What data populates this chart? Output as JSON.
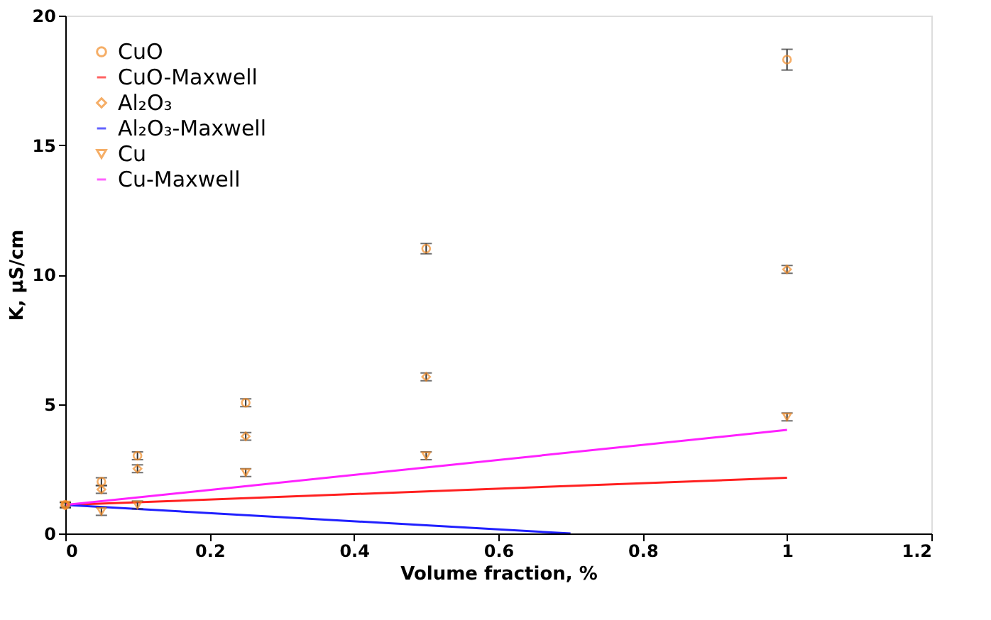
{
  "chart_data": {
    "type": "scatter",
    "xlabel": "Volume fraction, %",
    "ylabel": "K, μS/cm",
    "xlim": [
      0,
      1.2
    ],
    "xticks": [
      0,
      0.2,
      0.4,
      0.6,
      0.8,
      1,
      1.2
    ],
    "ylim": [
      0,
      20
    ],
    "yticks": [
      0,
      5,
      10,
      15,
      20
    ],
    "grid": false,
    "legend": "top left",
    "series": [
      {
        "name": "CuO",
        "marker": "circle",
        "color": "#f28c28",
        "x": [
          0,
          0.05,
          0.1,
          0.25,
          0.5,
          1
        ],
        "values": [
          1.1,
          2.0,
          3.0,
          5.05,
          11.0,
          18.3
        ],
        "errors": [
          0.1,
          0.15,
          0.15,
          0.15,
          0.2,
          0.4
        ]
      },
      {
        "name": "CuO-Maxwell",
        "type": "line",
        "color": "#ff2020",
        "x": [
          0,
          1
        ],
        "values": [
          1.1,
          2.15
        ]
      },
      {
        "name": "Al₂O₃",
        "marker": "diamond",
        "color": "#f28c28",
        "x": [
          0,
          0.05,
          0.1,
          0.25,
          0.5,
          1
        ],
        "values": [
          1.1,
          1.7,
          2.5,
          3.75,
          6.05,
          10.2
        ],
        "errors": [
          0.1,
          0.15,
          0.15,
          0.15,
          0.15,
          0.15
        ]
      },
      {
        "name": "Al₂O₃-Maxwell",
        "type": "line",
        "color": "#2020ff",
        "x": [
          0,
          0.7
        ],
        "values": [
          1.1,
          0
        ]
      },
      {
        "name": "Cu",
        "marker": "triangle",
        "color": "#f28c28",
        "x": [
          0,
          0.05,
          0.1,
          0.25,
          0.5,
          1
        ],
        "values": [
          1.1,
          0.85,
          1.1,
          2.35,
          3.0,
          4.5
        ],
        "errors": [
          0.1,
          0.15,
          0.15,
          0.15,
          0.15,
          0.15
        ]
      },
      {
        "name": "Cu-Maxwell",
        "type": "line",
        "color": "#ff20ff",
        "x": [
          0,
          1
        ],
        "values": [
          1.1,
          4.0
        ]
      }
    ]
  }
}
